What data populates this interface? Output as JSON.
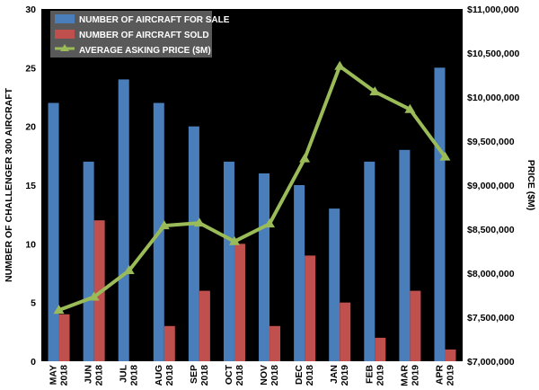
{
  "chart_data": {
    "type": "bar",
    "categories": [
      [
        "MAY",
        "2018"
      ],
      [
        "JUN",
        "2018"
      ],
      [
        "JUL",
        "2018"
      ],
      [
        "AUG",
        "2018"
      ],
      [
        "SEP",
        "2018"
      ],
      [
        "OCT",
        "2018"
      ],
      [
        "NOV",
        "2018"
      ],
      [
        "DEC",
        "2018"
      ],
      [
        "JAN",
        "2019"
      ],
      [
        "FEB",
        "2019"
      ],
      [
        "MAR",
        "2019"
      ],
      [
        "APR",
        "2019"
      ]
    ],
    "series": [
      {
        "name": "NUMBER OF AIRCRAFT FOR SALE",
        "type": "bar",
        "axis": "left",
        "color": "#4a7ebb",
        "values": [
          22,
          17,
          24,
          22,
          20,
          17,
          16,
          15,
          13,
          17,
          18,
          25
        ]
      },
      {
        "name": "NUMBER OF AIRCRAFT SOLD",
        "type": "bar",
        "axis": "left",
        "color": "#c0504d",
        "values": [
          4,
          12,
          0,
          3,
          6,
          10,
          3,
          9,
          5,
          2,
          6,
          1
        ]
      },
      {
        "name": "AVERAGE ASKING PRICE ($M)",
        "type": "line",
        "axis": "right",
        "color": "#9bbb59",
        "values": [
          7580000,
          7730000,
          8030000,
          8540000,
          8570000,
          8360000,
          8560000,
          9300000,
          10350000,
          10060000,
          9860000,
          9320000
        ]
      }
    ],
    "y_left": {
      "label": "NUMBER OF CHALLENGER 300 AIRCRAFT",
      "min": 0,
      "max": 30,
      "step": 5,
      "ticks": [
        "0",
        "5",
        "10",
        "15",
        "20",
        "25",
        "30"
      ]
    },
    "y_right": {
      "label": "PRICE ($M)",
      "min": 7000000,
      "max": 11000000,
      "step": 500000,
      "ticks": [
        "$7,000,000",
        "$7,500,000",
        "$8,000,000",
        "$8,500,000",
        "$9,000,000",
        "$9,500,000",
        "$10,000,000",
        "$10,500,000",
        "$11,000,000"
      ]
    },
    "legend_position": "top-left",
    "plot_background": "#000000",
    "grid": false
  }
}
